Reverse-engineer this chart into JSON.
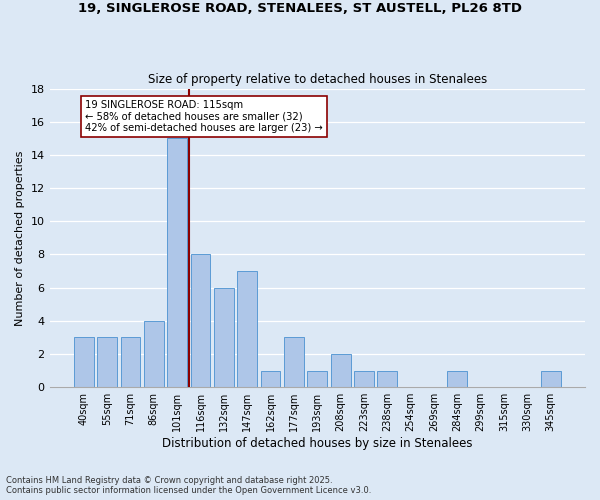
{
  "title_line1": "19, SINGLEROSE ROAD, STENALEES, ST AUSTELL, PL26 8TD",
  "title_line2": "Size of property relative to detached houses in Stenalees",
  "xlabel": "Distribution of detached houses by size in Stenalees",
  "ylabel": "Number of detached properties",
  "categories": [
    "40sqm",
    "55sqm",
    "71sqm",
    "86sqm",
    "101sqm",
    "116sqm",
    "132sqm",
    "147sqm",
    "162sqm",
    "177sqm",
    "193sqm",
    "208sqm",
    "223sqm",
    "238sqm",
    "254sqm",
    "269sqm",
    "284sqm",
    "299sqm",
    "315sqm",
    "330sqm",
    "345sqm"
  ],
  "values": [
    3,
    3,
    3,
    4,
    15,
    8,
    6,
    7,
    1,
    3,
    1,
    2,
    1,
    1,
    0,
    0,
    1,
    0,
    0,
    0,
    1
  ],
  "bar_color": "#aec6e8",
  "bar_edge_color": "#5b9bd5",
  "ylim": [
    0,
    18
  ],
  "yticks": [
    0,
    2,
    4,
    6,
    8,
    10,
    12,
    14,
    16,
    18
  ],
  "vline_color": "#8b0000",
  "annotation_text": "19 SINGLEROSE ROAD: 115sqm\n← 58% of detached houses are smaller (32)\n42% of semi-detached houses are larger (23) →",
  "annotation_box_color": "#ffffff",
  "annotation_box_edge": "#8b0000",
  "footer_line1": "Contains HM Land Registry data © Crown copyright and database right 2025.",
  "footer_line2": "Contains public sector information licensed under the Open Government Licence v3.0.",
  "bg_color": "#dce8f5",
  "plot_bg_color": "#dce8f5"
}
